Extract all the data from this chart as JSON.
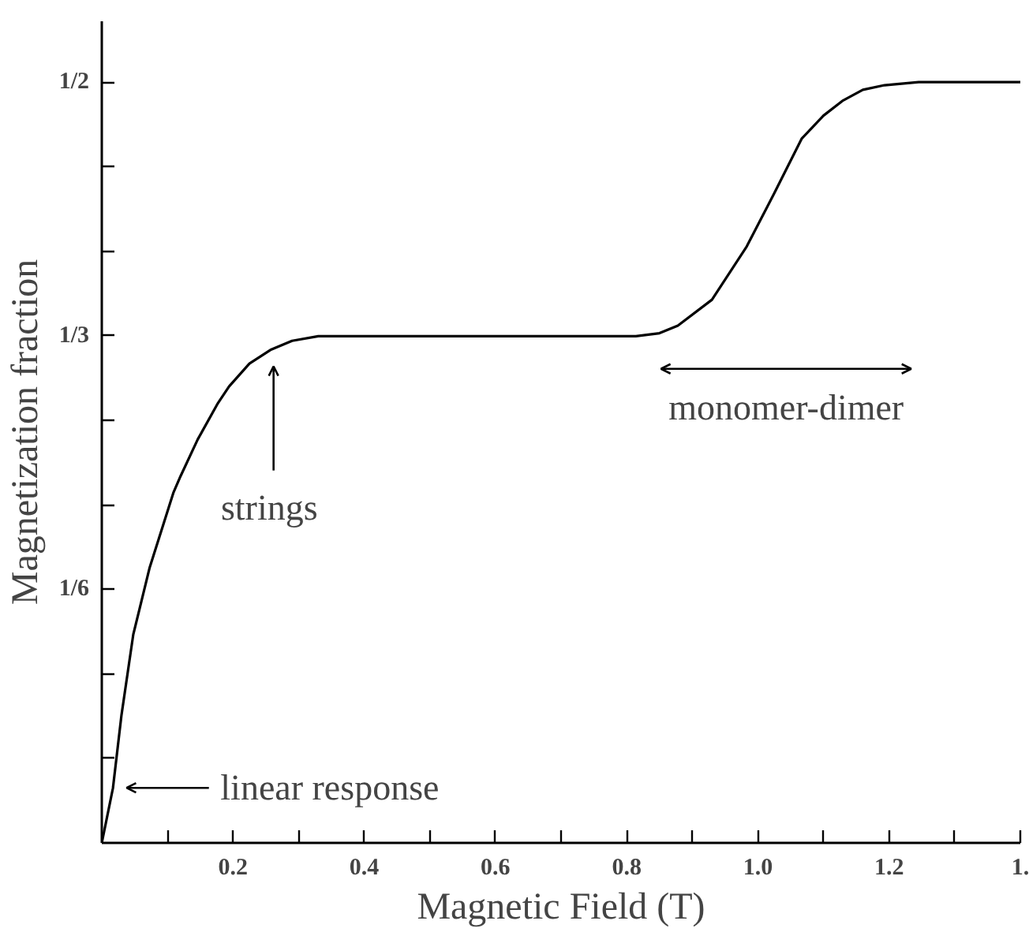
{
  "chart_data": {
    "type": "line",
    "xlabel": "Magnetic Field (T)",
    "ylabel": "Magnetization fraction",
    "x": [
      0,
      0.017,
      0.03,
      0.048,
      0.073,
      0.109,
      0.12,
      0.146,
      0.177,
      0.194,
      0.225,
      0.257,
      0.29,
      0.33,
      0.5,
      0.7,
      0.814,
      0.85,
      0.878,
      0.93,
      0.983,
      1.025,
      1.067,
      1.1,
      1.13,
      1.16,
      1.193,
      1.245,
      1.3,
      1.4
    ],
    "series": [
      {
        "color": "#000000",
        "values": [
          0,
          0.036,
          0.084,
          0.137,
          0.181,
          0.23,
          0.241,
          0.265,
          0.289,
          0.3,
          0.315,
          0.324,
          0.33,
          0.333,
          0.333,
          0.333,
          0.333,
          0.335,
          0.34,
          0.357,
          0.392,
          0.427,
          0.463,
          0.478,
          0.488,
          0.495,
          0.498,
          0.5,
          0.5,
          0.5
        ]
      }
    ],
    "xlim": [
      0,
      1.4
    ],
    "ylim": [
      0,
      0.54
    ],
    "xticks": [
      {
        "value": 0.1,
        "label": null
      },
      0.2,
      {
        "value": 0.3,
        "label": null
      },
      0.4,
      {
        "value": 0.5,
        "label": null
      },
      0.6,
      {
        "value": 0.7,
        "label": null
      },
      0.8,
      {
        "value": 0.9,
        "label": null
      },
      {
        "value": 1.0,
        "label": "1.0"
      },
      {
        "value": 1.1,
        "label": null
      },
      1.2,
      {
        "value": 1.3,
        "label": null
      },
      {
        "value": 1.4,
        "label": "1."
      }
    ],
    "yticks": [
      {
        "value": 0.0556,
        "label": null
      },
      {
        "value": 0.1111,
        "label": null
      },
      {
        "value": 0.1667,
        "label": "1/6"
      },
      {
        "value": 0.2222,
        "label": null
      },
      {
        "value": 0.2778,
        "label": null
      },
      {
        "value": 0.3333,
        "label": "1/3"
      },
      {
        "value": 0.3889,
        "label": null
      },
      {
        "value": 0.4444,
        "label": null
      },
      {
        "value": 0.5,
        "label": "1/2"
      }
    ],
    "grid": false,
    "marker": "none",
    "line_style": "solid",
    "annotations": [
      "linear response",
      "strings",
      "monomer-dimer"
    ]
  }
}
